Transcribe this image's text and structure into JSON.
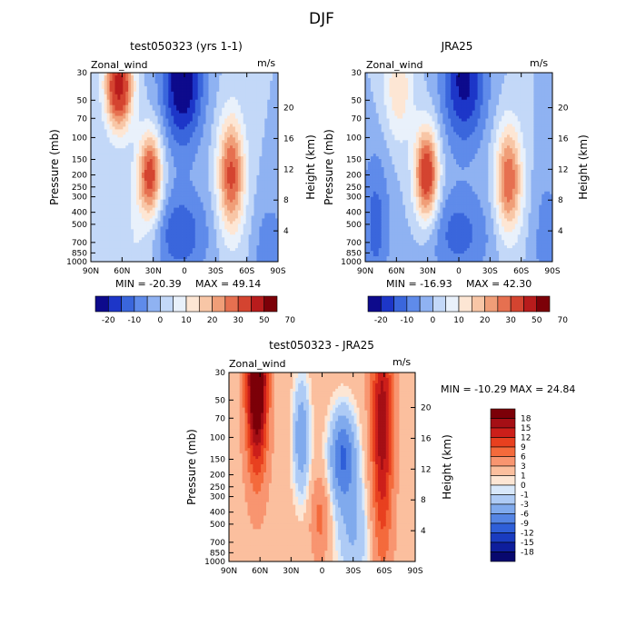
{
  "page": {
    "title": "DJF"
  },
  "axes_common": {
    "x_ticks": [
      "90N",
      "60N",
      "30N",
      "0",
      "30S",
      "60S",
      "90S"
    ],
    "p_ticks": [
      "30",
      "50",
      "70",
      "100",
      "150",
      "200",
      "250",
      "300",
      "400",
      "500",
      "700",
      "850",
      "1000"
    ],
    "h_ticks": [
      "20",
      "16",
      "12",
      "8",
      "4"
    ],
    "ylabel_left": "Pressure (mb)",
    "ylabel_right": "Height (km)",
    "variable": "Zonal_wind",
    "units": "m/s"
  },
  "chart_data": [
    {
      "type": "heatmap",
      "title": "test050323 (yrs 1-1)",
      "variable": "Zonal_wind",
      "units": "m/s",
      "xlabel": "",
      "ylabel": "Pressure (mb)",
      "y2label": "Height (km)",
      "x_range": [
        90,
        -90
      ],
      "y_range": [
        1000,
        30
      ],
      "min_label": "MIN = -20.39",
      "max_label": "MAX =  49.14",
      "min": -20.39,
      "max": 49.14,
      "levels": [
        "-20",
        "-10",
        "0",
        "10",
        "20",
        "30",
        "50",
        "70"
      ],
      "colorbar_colors": [
        "#0d0a8c",
        "#1d36c8",
        "#3a66dc",
        "#5f8bea",
        "#8fb2f2",
        "#c3d8f8",
        "#e9f1fb",
        "#fde6d4",
        "#f8c6a6",
        "#f09e78",
        "#e67050",
        "#d44430",
        "#b81c1c",
        "#7c0008"
      ],
      "features": [
        {
          "name": "westerly jet NH upper",
          "lat": 60,
          "p": 40,
          "value": 40
        },
        {
          "name": "westerly jet NH subtropical",
          "lat": 30,
          "p": 200,
          "value": 33
        },
        {
          "name": "westerly jet SH",
          "lat": -45,
          "p": 200,
          "value": 32
        },
        {
          "name": "easterlies tropical upper",
          "lat": 0,
          "p": 35,
          "value": -20
        }
      ]
    },
    {
      "type": "heatmap",
      "title": "JRA25",
      "variable": "Zonal_wind",
      "units": "m/s",
      "xlabel": "",
      "ylabel": "Pressure (mb)",
      "y2label": "Height (km)",
      "x_range": [
        90,
        -90
      ],
      "y_range": [
        1000,
        30
      ],
      "min_label": "MIN = -16.93",
      "max_label": "MAX =  42.30",
      "min": -16.93,
      "max": 42.3,
      "levels": [
        "-20",
        "-10",
        "0",
        "10",
        "20",
        "30",
        "50",
        "70"
      ],
      "colorbar_colors": [
        "#0d0a8c",
        "#1d36c8",
        "#3a66dc",
        "#5f8bea",
        "#8fb2f2",
        "#c3d8f8",
        "#e9f1fb",
        "#fde6d4",
        "#f8c6a6",
        "#f09e78",
        "#e67050",
        "#d44430",
        "#b81c1c",
        "#7c0008"
      ],
      "features": [
        {
          "name": "westerly jet NH subtropical",
          "lat": 30,
          "p": 200,
          "value": 38
        },
        {
          "name": "westerly jet SH",
          "lat": -48,
          "p": 200,
          "value": 30
        },
        {
          "name": "easterlies tropical upper",
          "lat": 0,
          "p": 35,
          "value": -16
        }
      ]
    },
    {
      "type": "heatmap",
      "title": "test050323 - JRA25",
      "variable": "Zonal_wind",
      "units": "m/s",
      "xlabel": "",
      "ylabel": "Pressure (mb)",
      "y2label": "Height (km)",
      "x_range": [
        90,
        -90
      ],
      "y_range": [
        1000,
        30
      ],
      "minmax_label": "MIN = -10.29   MAX =  24.84",
      "min": -10.29,
      "max": 24.84,
      "levels": [
        "18",
        "15",
        "12",
        "9",
        "6",
        "3",
        "1",
        "0",
        "-1",
        "-3",
        "-6",
        "-9",
        "-12",
        "-15",
        "-18"
      ],
      "colorbar_colors": [
        "#7c0008",
        "#a50f15",
        "#cc1f1a",
        "#e8401f",
        "#f46a3c",
        "#f89570",
        "#fbbf9e",
        "#fde6d4",
        "#d8e8fa",
        "#aecbf5",
        "#80aaed",
        "#5585e4",
        "#2f5fd8",
        "#1a3cc0",
        "#0e1e9c",
        "#08086e"
      ],
      "features": [
        {
          "name": "positive bias NH high lat",
          "lat": 62,
          "p": 40,
          "value": 24
        },
        {
          "name": "positive bias SH mid lat",
          "lat": -58,
          "p": 80,
          "value": 15
        },
        {
          "name": "negative bias tropics",
          "lat": -20,
          "p": 150,
          "value": -10
        }
      ]
    }
  ]
}
